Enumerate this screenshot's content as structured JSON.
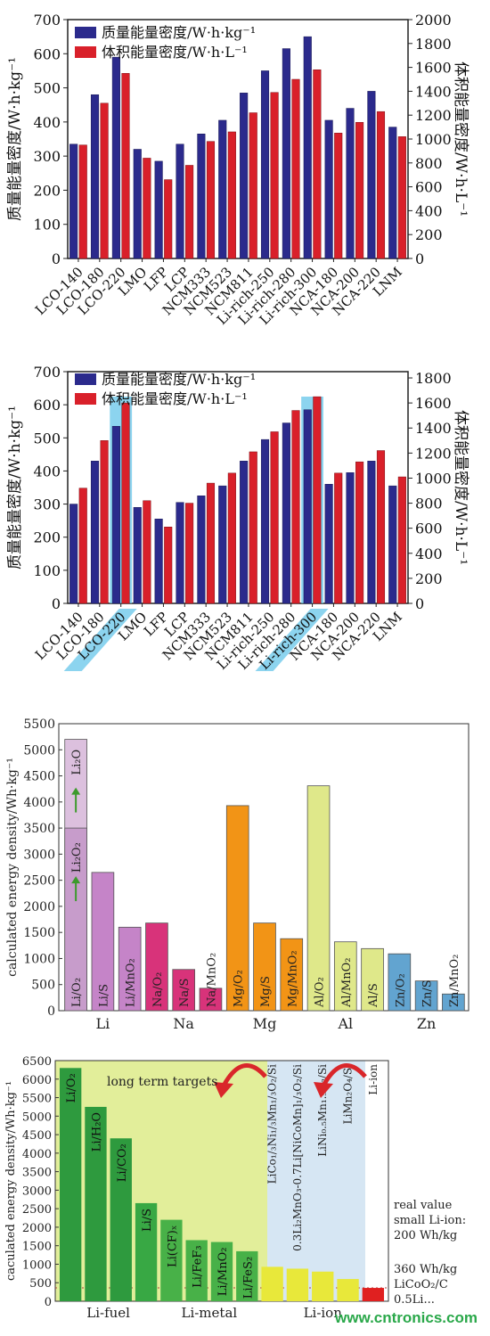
{
  "watermark": "www.cntronics.com",
  "chart_data": [
    {
      "type": "bar",
      "categories": [
        "LCO-140",
        "LCO-180",
        "LCO-220",
        "LMO",
        "LFP",
        "LCP",
        "NCM333",
        "NCM523",
        "NCM811",
        "Li-rich-250",
        "Li-rich-280",
        "Li-rich-300",
        "NCA-180",
        "NCA-200",
        "NCA-220",
        "LNM"
      ],
      "series": [
        {
          "name": "质量能量密度/W·h·kg⁻¹",
          "axis": "left",
          "color": "#2b2a8c",
          "values": [
            335,
            480,
            590,
            320,
            285,
            335,
            365,
            405,
            485,
            550,
            615,
            650,
            405,
            440,
            490,
            385
          ]
        },
        {
          "name": "体积能量密度/W·h·L⁻¹",
          "axis": "right",
          "color": "#d9202a",
          "values": [
            950,
            1300,
            1550,
            840,
            660,
            780,
            980,
            1060,
            1220,
            1390,
            1500,
            1580,
            1050,
            1140,
            1230,
            1020
          ]
        }
      ],
      "ylabel": "质量能量密度/W·h·kg⁻¹",
      "y2label": "体积能量密度/W·h·L⁻¹",
      "ylim": [
        0,
        700
      ],
      "y2lim": [
        0,
        2000
      ],
      "yticks": [
        "0",
        "100",
        "200",
        "300",
        "400",
        "500",
        "600",
        "700"
      ],
      "y2ticks": [
        "0",
        "200",
        "400",
        "600",
        "800",
        "1000",
        "1200",
        "1400",
        "1600",
        "1800",
        "2000"
      ],
      "legend": "top-left"
    },
    {
      "type": "bar",
      "categories": [
        "LCO-140",
        "LCO-180",
        "LCO-220",
        "LMO",
        "LFP",
        "LCP",
        "NCM333",
        "NCM523",
        "NCM811",
        "Li-rich-250",
        "Li-rich-280",
        "Li-rich-300",
        "NCA-180",
        "NCA-200",
        "NCA-220",
        "LNM"
      ],
      "series": [
        {
          "name": "质量能量密度/W·h·kg⁻¹",
          "axis": "left",
          "color": "#2b2a8c",
          "values": [
            300,
            430,
            535,
            290,
            255,
            305,
            325,
            355,
            430,
            495,
            545,
            585,
            360,
            395,
            430,
            355
          ]
        },
        {
          "name": "体积能量密度/W·h·L⁻¹",
          "axis": "right",
          "color": "#d9202a",
          "values": [
            920,
            1300,
            1600,
            820,
            610,
            800,
            960,
            1040,
            1210,
            1370,
            1540,
            1650,
            1040,
            1130,
            1220,
            1010
          ]
        }
      ],
      "highlighted": [
        "LCO-220",
        "Li-rich-300"
      ],
      "ylabel": "质量能量密度/W·h·kg⁻¹",
      "y2label": "体积能量密度/W·h·L⁻¹",
      "ylim": [
        0,
        700
      ],
      "y2lim": [
        0,
        1850
      ],
      "yticks": [
        "0",
        "100",
        "200",
        "300",
        "400",
        "500",
        "600",
        "700"
      ],
      "y2ticks": [
        "0",
        "200",
        "400",
        "600",
        "800",
        "1000",
        "1200",
        "1400",
        "1600",
        "1800"
      ],
      "legend": "top-left"
    },
    {
      "type": "bar",
      "groups": [
        "Li",
        "Na",
        "Mg",
        "Al",
        "Zn"
      ],
      "bars": [
        {
          "label": "Li/O2",
          "group": "Li",
          "value": 5200,
          "color": "#dcc0de",
          "sub": {
            "label": "Li2O2",
            "value": 3500
          }
        },
        {
          "label": "Li/S",
          "group": "Li",
          "value": 2650,
          "color": "#c584c8"
        },
        {
          "label": "Li/MnO2",
          "group": "Li",
          "value": 1600,
          "color": "#c584c8"
        },
        {
          "label": "Na/O2",
          "group": "Na",
          "value": 1680,
          "color": "#d8337a"
        },
        {
          "label": "Na/S",
          "group": "Na",
          "value": 790,
          "color": "#d8337a"
        },
        {
          "label": "Na/MnO2",
          "group": "Na",
          "value": 430,
          "color": "#d8337a"
        },
        {
          "label": "Mg/O2",
          "group": "Mg",
          "value": 3930,
          "color": "#f29416"
        },
        {
          "label": "Mg/S",
          "group": "Mg",
          "value": 1680,
          "color": "#f29416"
        },
        {
          "label": "Mg/MnO2",
          "group": "Mg",
          "value": 1380,
          "color": "#f29416"
        },
        {
          "label": "Al/O2",
          "group": "Al",
          "value": 4310,
          "color": "#dfe88a"
        },
        {
          "label": "Al/MnO2",
          "group": "Al",
          "value": 1320,
          "color": "#dfe88a"
        },
        {
          "label": "Al/S",
          "group": "Al",
          "value": 1190,
          "color": "#dfe88a"
        },
        {
          "label": "Zn/O2",
          "group": "Zn",
          "value": 1090,
          "color": "#62a4d0"
        },
        {
          "label": "Zn/S",
          "group": "Zn",
          "value": 570,
          "color": "#62a4d0"
        },
        {
          "label": "Zn/MnO2",
          "group": "Zn",
          "value": 320,
          "color": "#62a4d0"
        }
      ],
      "annotation": "Li2O",
      "ylabel": "calculated energy density/Wh·kg⁻¹",
      "ylim": [
        0,
        5500
      ],
      "yticks": [
        "0",
        "500",
        "1000",
        "1500",
        "2000",
        "2500",
        "3000",
        "3500",
        "4000",
        "4500",
        "5000",
        "5500"
      ]
    },
    {
      "type": "bar",
      "groups": [
        "Li-fuel",
        "Li-metal",
        "Li-ion"
      ],
      "bars": [
        {
          "label": "Li/O2",
          "group": "Li-fuel",
          "value": 6300,
          "color": "#2e9a3e"
        },
        {
          "label": "Li/H2O",
          "group": "Li-fuel",
          "value": 5250,
          "color": "#2e9a3e"
        },
        {
          "label": "Li/CO2",
          "group": "Li-fuel",
          "value": 4400,
          "color": "#2e9a3e"
        },
        {
          "label": "Li/S",
          "group": "Li-fuel",
          "value": 2650,
          "color": "#38a844"
        },
        {
          "label": "Li(CF)x",
          "group": "Li-metal",
          "value": 2200,
          "color": "#48b148"
        },
        {
          "label": "Li/FeF3",
          "group": "Li-metal",
          "value": 1650,
          "color": "#48b148"
        },
        {
          "label": "Li/MnO2",
          "group": "Li-metal",
          "value": 1600,
          "color": "#48b148"
        },
        {
          "label": "Li/FeS2",
          "group": "Li-metal",
          "value": 1350,
          "color": "#48b148"
        },
        {
          "label": "LiCo1/3Ni1/3Mn1/3O2/Si",
          "group": "Li-ion",
          "value": 930,
          "color": "#e8e83a"
        },
        {
          "label": "0.3Li2MnO3-0.7Li[NiCoMn]1/3O2/Si",
          "group": "Li-ion",
          "value": 880,
          "color": "#e8e83a"
        },
        {
          "label": "LiNi0.5Mn1.5O2/Si",
          "group": "Li-ion",
          "value": 800,
          "color": "#e8e83a"
        },
        {
          "label": "LiMn2O4/Si",
          "group": "Li-ion",
          "value": 600,
          "color": "#e8e83a"
        },
        {
          "label": "Li-ion",
          "group": "Li-ion",
          "value": 360,
          "color": "#e02020"
        }
      ],
      "annotations": [
        "long term targets",
        "real value",
        "small Li-ion:",
        "200 Wh/kg",
        "360 Wh/kg",
        "LiCoO2/C",
        "0.5Li..."
      ],
      "ylabel": "caculated energy density/Wh·kg⁻¹",
      "ylim": [
        0,
        6500
      ],
      "yticks": [
        "0",
        "500",
        "1000",
        "1500",
        "2000",
        "2500",
        "3000",
        "3500",
        "4000",
        "4500",
        "5000",
        "5500",
        "6000",
        "6500"
      ]
    }
  ]
}
